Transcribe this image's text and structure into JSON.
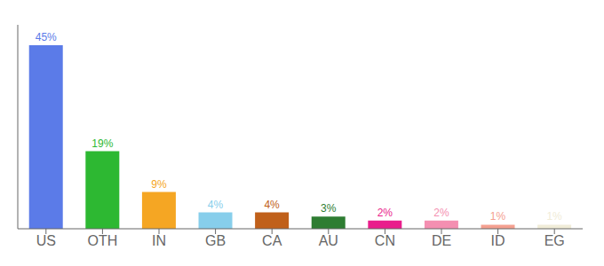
{
  "chart_data": {
    "type": "bar",
    "categories": [
      "US",
      "OTH",
      "IN",
      "GB",
      "CA",
      "AU",
      "CN",
      "DE",
      "ID",
      "EG"
    ],
    "values": [
      45,
      19,
      9,
      4,
      4,
      3,
      2,
      2,
      1,
      1
    ],
    "value_labels": [
      "45%",
      "19%",
      "9%",
      "4%",
      "4%",
      "3%",
      "2%",
      "2%",
      "1%",
      "1%"
    ],
    "colors": [
      "#5b7be8",
      "#2db832",
      "#f5a623",
      "#87ceeb",
      "#c0601a",
      "#2e7d32",
      "#e91e8c",
      "#f48fb1",
      "#f4a090",
      "#f0ecd8"
    ],
    "ylim": [
      0,
      50
    ],
    "data_labels": true,
    "tick_labels": "x",
    "grid": false
  }
}
